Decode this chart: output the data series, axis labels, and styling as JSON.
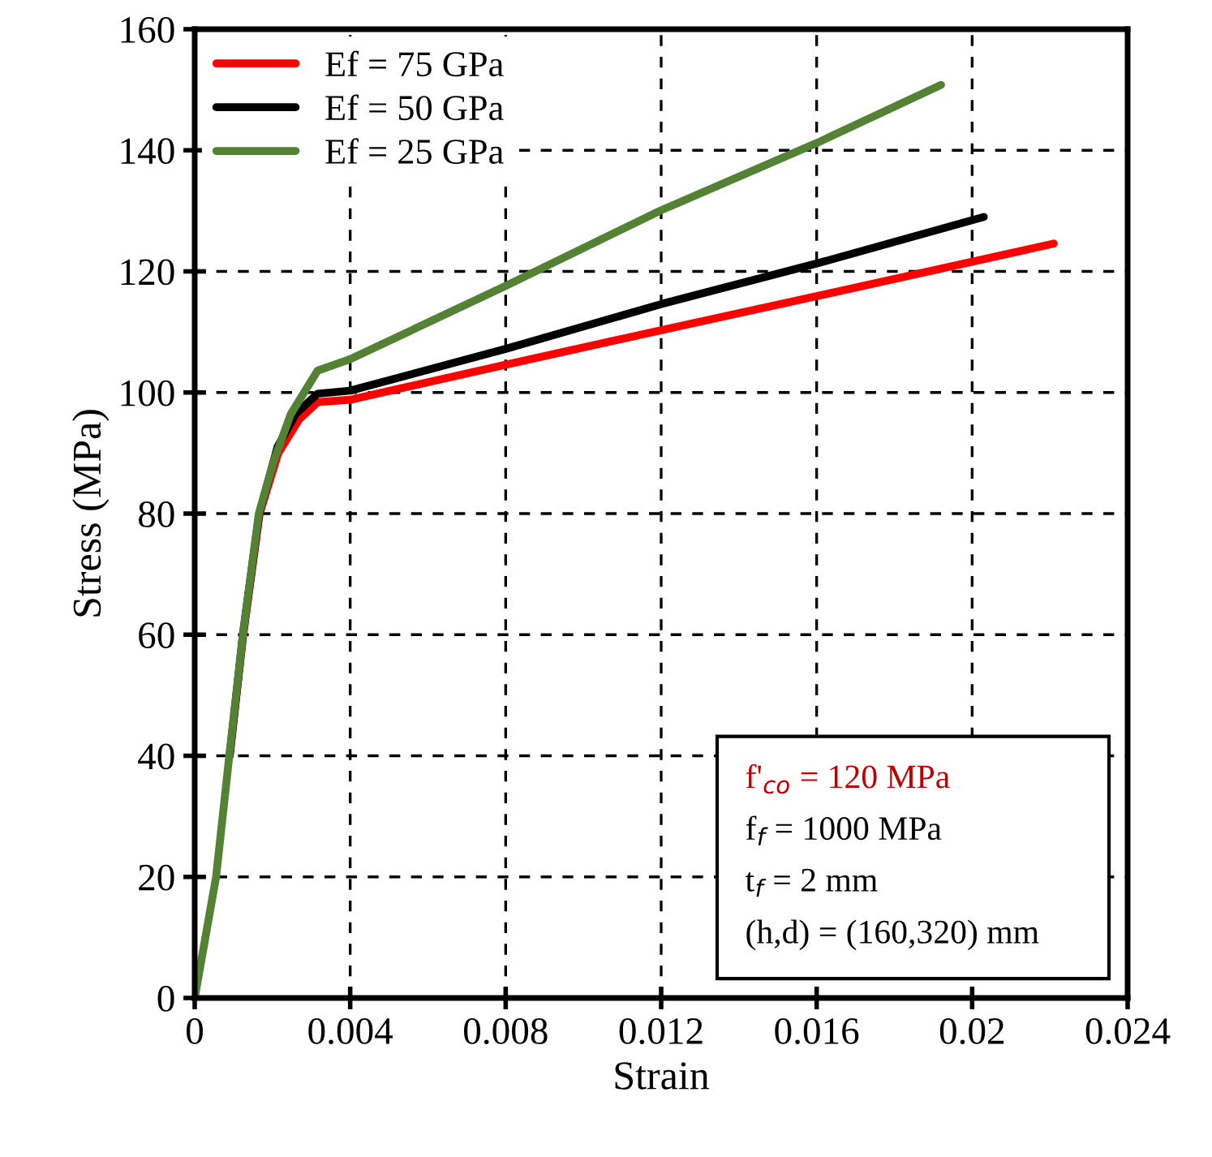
{
  "chart_data": {
    "type": "line",
    "xlabel": "Strain",
    "ylabel": "Stress (MPa)",
    "xlim": [
      0,
      0.024
    ],
    "xticks": [
      0,
      0.004,
      0.008,
      0.012,
      0.016,
      0.02,
      0.024
    ],
    "ylim": [
      0,
      160
    ],
    "yticks": [
      0,
      20,
      40,
      60,
      80,
      100,
      120,
      140,
      160
    ],
    "grid": true,
    "legend": "top left",
    "marker": "none",
    "line_style": "solid",
    "series": [
      {
        "name": "Ef = 75 GPa",
        "color": "#ff0000",
        "x": [
          0.0009,
          0.00125,
          0.00167,
          0.00215,
          0.00268,
          0.00316,
          0.004,
          0.008,
          0.012,
          0.016,
          0.0221
        ],
        "values": [
          40,
          60,
          80,
          90,
          95.5,
          98.4,
          98.8,
          104.6,
          110.3,
          115.9,
          124.6
        ]
      },
      {
        "name": "Ef = 50 GPa",
        "color": "#000000",
        "x": [
          0.0009,
          0.00124,
          0.00166,
          0.00213,
          0.0026,
          0.00316,
          0.004,
          0.008,
          0.012,
          0.016,
          0.0203
        ],
        "values": [
          40,
          60,
          80,
          91,
          96.5,
          99.8,
          100.3,
          107.2,
          114.6,
          121.3,
          129.0
        ]
      },
      {
        "name": "Ef = 25 GPa",
        "color": "#548235",
        "x": [
          0,
          0.00055,
          0.00089,
          0.00124,
          0.00165,
          0.00205,
          0.00247,
          0.00316,
          0.004,
          0.008,
          0.012,
          0.016,
          0.0192
        ],
        "values": [
          0,
          20,
          40,
          60,
          80,
          89,
          96.4,
          103.6,
          105.5,
          117.6,
          130.1,
          141.2,
          150.8
        ]
      }
    ],
    "annotations": [
      "f'$_{co}$ = 120 MPa",
      "f$_{f}$ = 1000 MPa",
      "t$_{f}$ = 2 mm",
      "(h,d) = (160,320) mm"
    ]
  }
}
